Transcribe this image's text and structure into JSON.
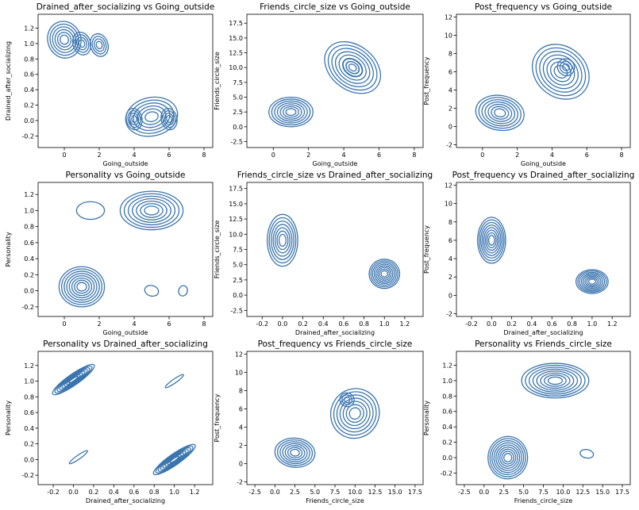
{
  "colors": {
    "contour": "#3b75af",
    "axes": "#000000",
    "background": "#ffffff"
  },
  "chart_data": [
    {
      "type": "kde_contour",
      "title": "Drained_after_socializing vs Going_outside",
      "xlabel": "Going_outside",
      "ylabel": "Drained_after_socializing",
      "xticks": [
        "0",
        "2",
        "4",
        "6",
        "8"
      ],
      "yticks": [
        "-0.2",
        "0.0",
        "0.2",
        "0.4",
        "0.6",
        "0.8",
        "1.0",
        "1.2"
      ],
      "xlim": [
        -1.5,
        8.5
      ],
      "ylim": [
        -0.35,
        1.38
      ],
      "clusters": [
        {
          "cx": 0,
          "cy": 1.05,
          "sx": 1.9,
          "sy": 0.48,
          "rot": -18,
          "n": 6
        },
        {
          "cx": 1,
          "cy": 1.0,
          "sx": 1.0,
          "sy": 0.3,
          "rot": -18,
          "n": 4
        },
        {
          "cx": 2,
          "cy": 0.98,
          "sx": 1.0,
          "sy": 0.3,
          "rot": -18,
          "n": 4
        },
        {
          "cx": 5,
          "cy": 0.05,
          "sx": 3.0,
          "sy": 0.5,
          "rot": -12,
          "n": 6
        },
        {
          "cx": 4,
          "cy": 0.02,
          "sx": 0.9,
          "sy": 0.28,
          "rot": -12,
          "n": 4
        },
        {
          "cx": 6,
          "cy": 0.02,
          "sx": 0.9,
          "sy": 0.28,
          "rot": -12,
          "n": 4
        }
      ]
    },
    {
      "type": "kde_contour",
      "title": "Friends_circle_size vs Going_outside",
      "xlabel": "Going_outside",
      "ylabel": "Friends_circle_size",
      "xticks": [
        "0",
        "2",
        "4",
        "6",
        "8"
      ],
      "yticks": [
        "-2.5",
        "0.0",
        "2.5",
        "5.0",
        "7.5",
        "10.0",
        "12.5",
        "15.0",
        "17.5"
      ],
      "xlim": [
        -1.5,
        8.5
      ],
      "ylim": [
        -3.5,
        19
      ],
      "clusters": [
        {
          "cx": 1,
          "cy": 2.5,
          "sx": 2.5,
          "sy": 5.0,
          "rot": 0,
          "n": 7
        },
        {
          "cx": 4.5,
          "cy": 10,
          "sx": 3.5,
          "sy": 7.5,
          "rot": 38,
          "n": 7
        },
        {
          "cx": 4.5,
          "cy": 10,
          "sx": 1.2,
          "sy": 2.5,
          "rot": 38,
          "n": 3
        }
      ]
    },
    {
      "type": "kde_contour",
      "title": "Post_frequency vs Going_outside",
      "xlabel": "Going_outside",
      "ylabel": "Post_frequency",
      "xticks": [
        "0",
        "2",
        "4",
        "6",
        "8"
      ],
      "yticks": [
        "-2",
        "0",
        "2",
        "4",
        "6",
        "8",
        "10",
        "12"
      ],
      "xlim": [
        -1.5,
        8.5
      ],
      "ylim": [
        -2.3,
        12.3
      ],
      "clusters": [
        {
          "cx": 1,
          "cy": 1.5,
          "sx": 2.8,
          "sy": 3.8,
          "rot": 10,
          "n": 7
        },
        {
          "cx": 4.5,
          "cy": 6,
          "sx": 3.5,
          "sy": 5.5,
          "rot": 40,
          "n": 7
        },
        {
          "cx": 4.8,
          "cy": 6.5,
          "sx": 1.0,
          "sy": 1.8,
          "rot": 40,
          "n": 3
        }
      ]
    },
    {
      "type": "kde_contour",
      "title": "Personality vs Going_outside",
      "xlabel": "Going_outside",
      "ylabel": "Personality",
      "xticks": [
        "0",
        "2",
        "4",
        "6",
        "8"
      ],
      "yticks": [
        "-0.2",
        "0.0",
        "0.2",
        "0.4",
        "0.6",
        "0.8",
        "1.0",
        "1.2"
      ],
      "xlim": [
        -1.5,
        8.5
      ],
      "ylim": [
        -0.32,
        1.35
      ],
      "clusters": [
        {
          "cx": 5,
          "cy": 1.0,
          "sx": 3.6,
          "sy": 0.48,
          "rot": 0,
          "n": 7
        },
        {
          "cx": 1.5,
          "cy": 1.0,
          "sx": 1.6,
          "sy": 0.22,
          "rot": 0,
          "n": 1
        },
        {
          "cx": 1,
          "cy": 0.05,
          "sx": 2.6,
          "sy": 0.5,
          "rot": 0,
          "n": 8
        },
        {
          "cx": 5,
          "cy": 0.0,
          "sx": 0.8,
          "sy": 0.13,
          "rot": 15,
          "n": 1
        },
        {
          "cx": 6.8,
          "cy": 0.0,
          "sx": 0.5,
          "sy": 0.13,
          "rot": 15,
          "n": 1
        }
      ]
    },
    {
      "type": "kde_contour",
      "title": "Friends_circle_size vs Drained_after_socializing",
      "xlabel": "Drained_after_socializing",
      "ylabel": "Friends_circle_size",
      "xticks": [
        "-0.2",
        "0.0",
        "0.2",
        "0.4",
        "0.6",
        "0.8",
        "1.0",
        "1.2"
      ],
      "yticks": [
        "-2.5",
        "0.0",
        "2.5",
        "5.0",
        "7.5",
        "10.0",
        "12.5",
        "15.0",
        "17.5"
      ],
      "xlim": [
        -0.35,
        1.38
      ],
      "ylim": [
        -3.5,
        18.5
      ],
      "clusters": [
        {
          "cx": 0.0,
          "cy": 9,
          "sx": 0.3,
          "sy": 8.5,
          "rot": 0,
          "n": 7
        },
        {
          "cx": 1.0,
          "cy": 3.5,
          "sx": 0.3,
          "sy": 4.8,
          "rot": 0,
          "n": 8
        }
      ]
    },
    {
      "type": "kde_contour",
      "title": "Post_frequency vs Drained_after_socializing",
      "xlabel": "Drained_after_socializing",
      "ylabel": "Post_frequency",
      "xticks": [
        "-0.2",
        "0.0",
        "0.2",
        "0.4",
        "0.6",
        "0.8",
        "1.0",
        "1.2"
      ],
      "yticks": [
        "-2",
        "0",
        "2",
        "4",
        "6",
        "8",
        "10",
        "12"
      ],
      "xlim": [
        -0.35,
        1.38
      ],
      "ylim": [
        -2.3,
        12.3
      ],
      "clusters": [
        {
          "cx": 0.0,
          "cy": 6,
          "sx": 0.28,
          "sy": 5.0,
          "rot": 0,
          "n": 8
        },
        {
          "cx": 1.0,
          "cy": 1.5,
          "sx": 0.32,
          "sy": 2.6,
          "rot": 0,
          "n": 8
        }
      ]
    },
    {
      "type": "kde_contour",
      "title": "Personality vs Drained_after_socializing",
      "xlabel": "Drained_after_socializing",
      "ylabel": "Personality",
      "xticks": [
        "-0.2",
        "0.0",
        "0.2",
        "0.4",
        "0.6",
        "0.8",
        "1.0",
        "1.2"
      ],
      "yticks": [
        "-0.2",
        "0.0",
        "0.2",
        "0.4",
        "0.6",
        "0.8",
        "1.0",
        "1.2"
      ],
      "xlim": [
        -0.35,
        1.38
      ],
      "ylim": [
        -0.32,
        1.38
      ],
      "clusters": [
        {
          "cx": 0.0,
          "cy": 1.02,
          "sx": 0.5,
          "sy": 0.14,
          "rot": -35,
          "n": 8
        },
        {
          "cx": 1.0,
          "cy": 0.0,
          "sx": 0.5,
          "sy": 0.14,
          "rot": -35,
          "n": 8
        },
        {
          "cx": 1.0,
          "cy": 1.0,
          "sx": 0.22,
          "sy": 0.05,
          "rot": -35,
          "n": 1
        },
        {
          "cx": 0.05,
          "cy": 0.03,
          "sx": 0.22,
          "sy": 0.05,
          "rot": -35,
          "n": 1
        }
      ]
    },
    {
      "type": "kde_contour",
      "title": "Post_frequency vs Friends_circle_size",
      "xlabel": "Friends_circle_size",
      "ylabel": "Post_frequency",
      "xticks": [
        "-2.5",
        "0.0",
        "2.5",
        "5.0",
        "7.5",
        "10.0",
        "12.5",
        "15.0",
        "17.5"
      ],
      "yticks": [
        "-2",
        "0",
        "2",
        "4",
        "6",
        "8",
        "10",
        "12"
      ],
      "xlim": [
        -3.5,
        18.5
      ],
      "ylim": [
        -2.3,
        12.3
      ],
      "clusters": [
        {
          "cx": 2.5,
          "cy": 1.2,
          "sx": 5.0,
          "sy": 3.2,
          "rot": 5,
          "n": 7
        },
        {
          "cx": 10,
          "cy": 5.5,
          "sx": 6.0,
          "sy": 5.5,
          "rot": 30,
          "n": 7
        },
        {
          "cx": 9,
          "cy": 7,
          "sx": 1.8,
          "sy": 1.5,
          "rot": 30,
          "n": 3
        }
      ]
    },
    {
      "type": "kde_contour",
      "title": "Personality vs Friends_circle_size",
      "xlabel": "Friends_circle_size",
      "ylabel": "Personality",
      "xticks": [
        "-2.5",
        "0.0",
        "2.5",
        "5.0",
        "7.5",
        "10.0",
        "12.5",
        "15.0",
        "17.5"
      ],
      "yticks": [
        "-0.2",
        "0.0",
        "0.2",
        "0.4",
        "0.6",
        "0.8",
        "1.0",
        "1.2"
      ],
      "xlim": [
        -3.5,
        18.5
      ],
      "ylim": [
        -0.35,
        1.38
      ],
      "clusters": [
        {
          "cx": 9,
          "cy": 1.0,
          "sx": 8.5,
          "sy": 0.45,
          "rot": 0,
          "n": 8
        },
        {
          "cx": 3,
          "cy": 0.0,
          "sx": 5.0,
          "sy": 0.55,
          "rot": 4,
          "n": 9
        },
        {
          "cx": 13,
          "cy": 0.05,
          "sx": 1.7,
          "sy": 0.11,
          "rot": 10,
          "n": 1
        }
      ]
    }
  ]
}
